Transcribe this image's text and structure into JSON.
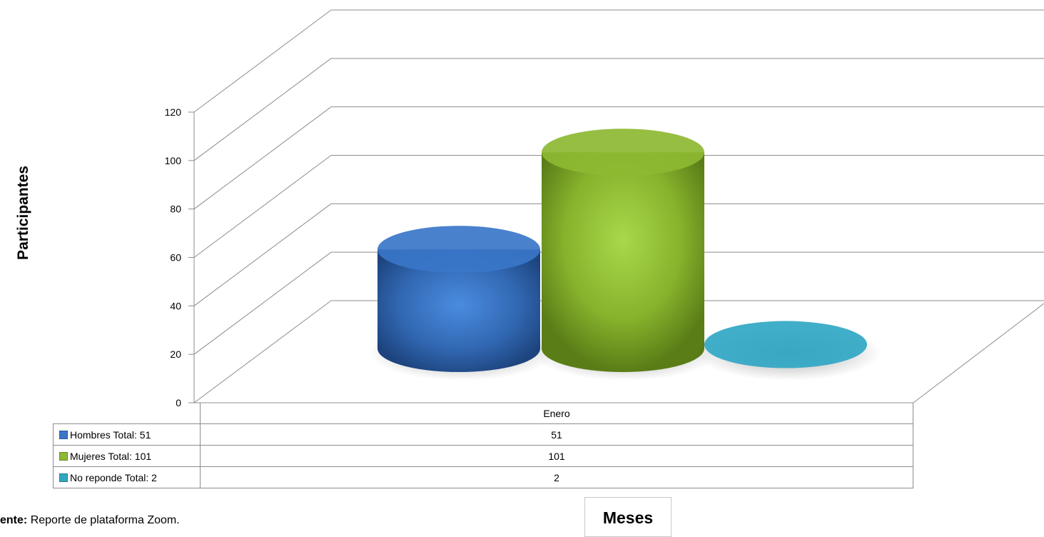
{
  "chart_data": {
    "type": "bar",
    "categories": [
      "Enero"
    ],
    "series": [
      {
        "name": "Hombres  Total: 51",
        "values": [
          51
        ],
        "color": "#3a76c8"
      },
      {
        "name": "Mujeres  Total: 101",
        "values": [
          101
        ],
        "color": "#8db832"
      },
      {
        "name": "No reponde  Total: 2",
        "values": [
          2
        ],
        "color": "#31a7c4"
      }
    ],
    "ylabel": "Participantes",
    "xlabel": "Meses",
    "ylim": [
      0,
      120
    ],
    "yticks": [
      "0",
      "20",
      "40",
      "60",
      "80",
      "100",
      "120"
    ],
    "grid": true,
    "legend": "data table below chart",
    "note": {
      "bold": "ente:",
      "text": "Reporte de  plataforma Zoom."
    }
  }
}
